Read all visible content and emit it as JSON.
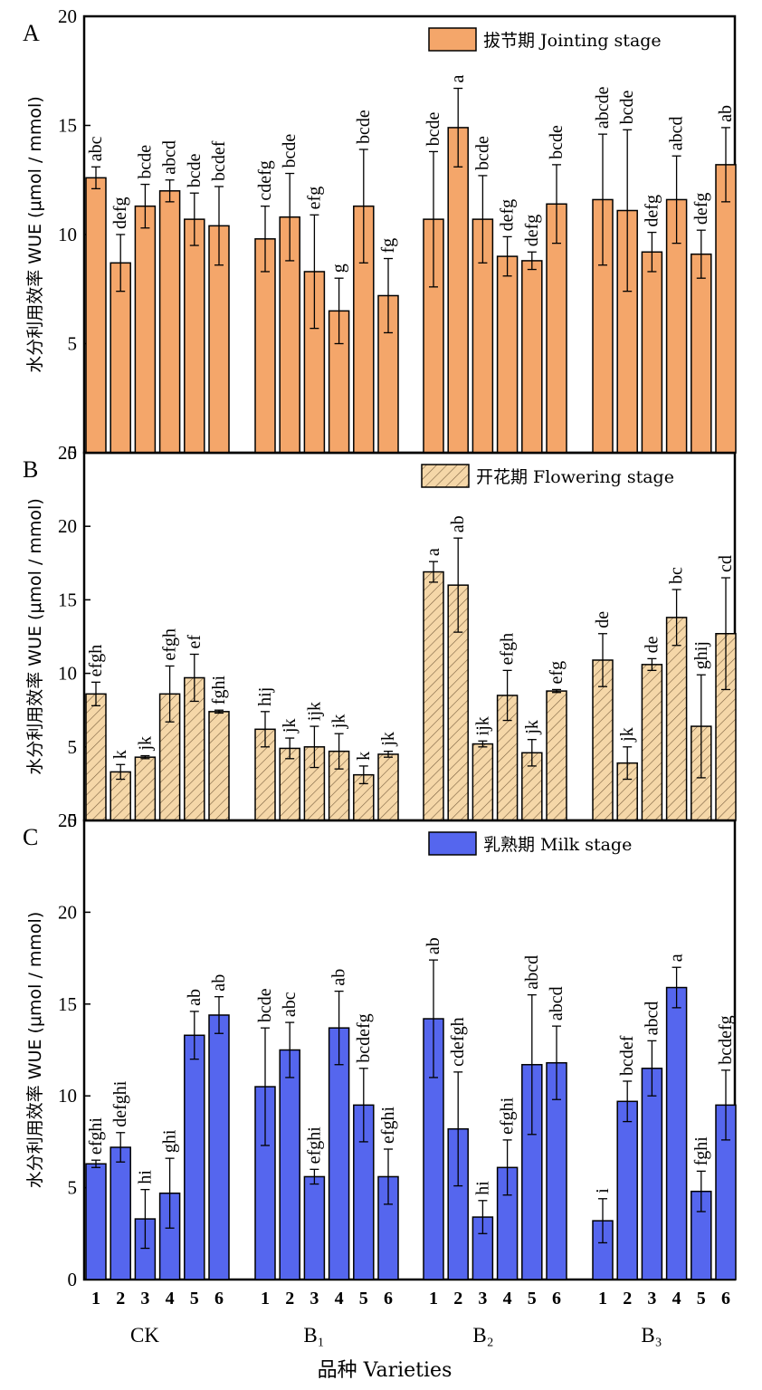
{
  "figure": {
    "xlabel": "品种 Varieties",
    "group_labels": [
      "CK",
      "B₁",
      "B₂",
      "B₃"
    ],
    "tick_numbers": [
      "1",
      "2",
      "3",
      "4",
      "5",
      "6"
    ]
  },
  "chart_data": [
    {
      "type": "bar",
      "panel": "A",
      "legend": "拔节期 Jointing stage",
      "ylabel": "水分利用效率 WUE (μmol / mmol)",
      "ylim": [
        0,
        20
      ],
      "yticks": [
        "0",
        "5",
        "10",
        "15",
        "20"
      ],
      "fill": "#f4a66a",
      "hatch": false,
      "groups": [
        {
          "name": "CK",
          "values": [
            12.6,
            8.7,
            11.3,
            12.0,
            10.7,
            10.4
          ],
          "errors": [
            0.5,
            1.3,
            1.0,
            0.5,
            1.2,
            1.8
          ],
          "labels": [
            "abc",
            "defg",
            "bcde",
            "abcd",
            "bcde",
            "bcdef"
          ]
        },
        {
          "name": "B₁",
          "values": [
            9.8,
            10.8,
            8.3,
            6.5,
            11.3,
            7.2
          ],
          "errors": [
            1.5,
            2.0,
            2.6,
            1.5,
            2.6,
            1.7
          ],
          "labels": [
            "cdefg",
            "bcde",
            "efg",
            "g",
            "bcde",
            "fg"
          ]
        },
        {
          "name": "B₂",
          "values": [
            10.7,
            14.9,
            10.7,
            9.0,
            8.8,
            11.4
          ],
          "errors": [
            3.1,
            1.8,
            2.0,
            0.9,
            0.4,
            1.8
          ],
          "labels": [
            "bcde",
            "a",
            "bcde",
            "defg",
            "defg",
            "bcde"
          ]
        },
        {
          "name": "B₃",
          "values": [
            11.6,
            11.1,
            9.2,
            11.6,
            9.1,
            13.2
          ],
          "errors": [
            3.0,
            3.7,
            0.9,
            2.0,
            1.1,
            1.7
          ],
          "labels": [
            "abcde",
            "bcde",
            "defg",
            "abcd",
            "defg",
            "ab"
          ]
        }
      ]
    },
    {
      "type": "bar",
      "panel": "B",
      "legend": "开花期 Flowering stage",
      "ylabel": "水分利用效率 WUE (μmol / mmol)",
      "ylim": [
        0,
        25
      ],
      "yticks": [
        "0",
        "5",
        "10",
        "15",
        "20",
        "25"
      ],
      "fill": "#f5d7a8",
      "hatch": true,
      "groups": [
        {
          "name": "CK",
          "values": [
            8.6,
            3.3,
            4.3,
            8.6,
            9.7,
            7.4
          ],
          "errors": [
            0.8,
            0.5,
            0.1,
            1.9,
            1.6,
            0.1
          ],
          "labels": [
            "efgh",
            "k",
            "jk",
            "efgh",
            "ef",
            "fghi"
          ]
        },
        {
          "name": "B₁",
          "values": [
            6.2,
            4.9,
            5.0,
            4.7,
            3.1,
            4.5
          ],
          "errors": [
            1.2,
            0.7,
            1.4,
            1.2,
            0.6,
            0.2
          ],
          "labels": [
            "hij",
            "jk",
            "ijk",
            "jk",
            "k",
            "jk"
          ]
        },
        {
          "name": "B₂",
          "values": [
            16.9,
            16.0,
            5.2,
            8.5,
            4.6,
            8.8
          ],
          "errors": [
            0.7,
            3.2,
            0.2,
            1.7,
            0.9,
            0.1
          ],
          "labels": [
            "a",
            "ab",
            "ijk",
            "efgh",
            "jk",
            "efg"
          ]
        },
        {
          "name": "B₃",
          "values": [
            10.9,
            3.9,
            10.6,
            13.8,
            6.4,
            12.7
          ],
          "errors": [
            1.8,
            1.1,
            0.4,
            1.9,
            3.5,
            3.8
          ],
          "labels": [
            "de",
            "jk",
            "de",
            "bc",
            "ghij",
            "cd"
          ]
        }
      ]
    },
    {
      "type": "bar",
      "panel": "C",
      "legend": "乳熟期 Milk stage",
      "ylabel": "水分利用效率 WUE (μmol / mmol)",
      "ylim": [
        0,
        25
      ],
      "yticks": [
        "0",
        "5",
        "10",
        "15",
        "20",
        "25"
      ],
      "fill": "#5566ee",
      "hatch": false,
      "groups": [
        {
          "name": "CK",
          "values": [
            6.3,
            7.2,
            3.3,
            4.7,
            13.3,
            14.4
          ],
          "errors": [
            0.2,
            0.8,
            1.6,
            1.9,
            1.3,
            1.0
          ],
          "labels": [
            "efghi",
            "defghi",
            "hi",
            "ghi",
            "ab",
            "ab"
          ]
        },
        {
          "name": "B₁",
          "values": [
            10.5,
            12.5,
            5.6,
            13.7,
            9.5,
            5.6
          ],
          "errors": [
            3.2,
            1.5,
            0.4,
            2.0,
            2.0,
            1.5
          ],
          "labels": [
            "bcde",
            "abc",
            "efghi",
            "ab",
            "bcdefg",
            "efghi"
          ]
        },
        {
          "name": "B₂",
          "values": [
            14.2,
            8.2,
            3.4,
            6.1,
            11.7,
            11.8
          ],
          "errors": [
            3.2,
            3.1,
            0.9,
            1.5,
            3.8,
            2.0
          ],
          "labels": [
            "ab",
            "cdefgh",
            "hi",
            "efghi",
            "abcd",
            "abcd"
          ]
        },
        {
          "name": "B₃",
          "values": [
            3.2,
            9.7,
            11.5,
            15.9,
            4.8,
            9.5
          ],
          "errors": [
            1.2,
            1.1,
            1.5,
            1.1,
            1.1,
            1.9
          ],
          "labels": [
            "i",
            "bcdef",
            "abcd",
            "a",
            "fghi",
            "bcdefg"
          ]
        }
      ]
    }
  ]
}
